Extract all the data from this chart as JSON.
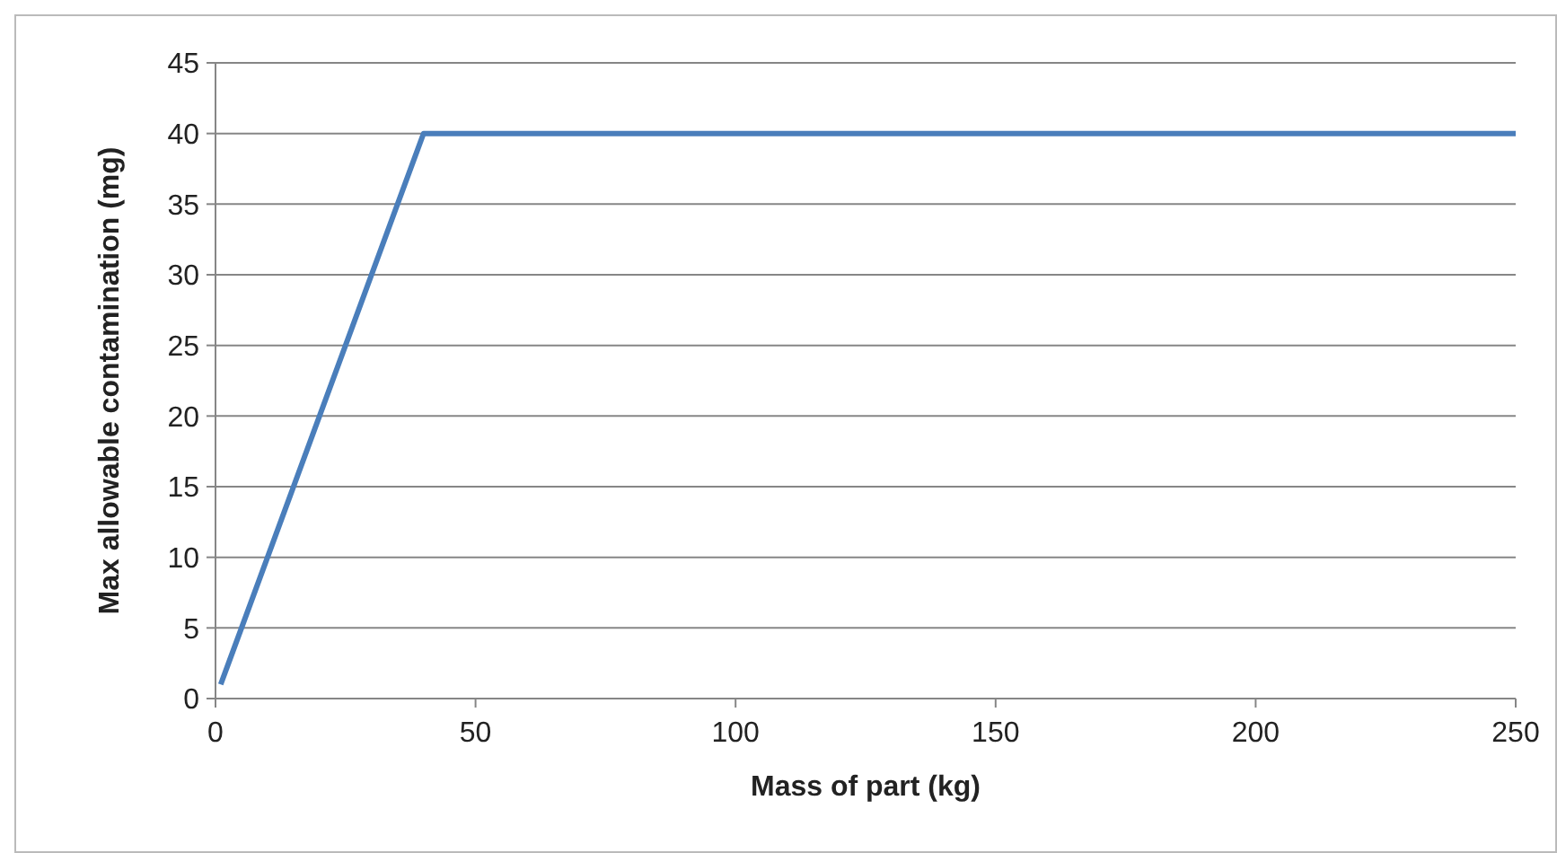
{
  "chart_data": {
    "type": "line",
    "xlabel": "Mass of part (kg)",
    "ylabel": "Max allowable contamination (mg)",
    "x": [
      1,
      40,
      250
    ],
    "series": [
      {
        "color": "#4a7ebb",
        "values": [
          1,
          40,
          40
        ]
      }
    ],
    "xlim": [
      0,
      250
    ],
    "xticks": [
      0,
      50,
      100,
      150,
      200,
      250
    ],
    "ylim": [
      0,
      45
    ],
    "yticks": [
      0,
      5,
      10,
      15,
      20,
      25,
      30,
      35,
      40,
      45
    ],
    "grid": "y",
    "marker": "none",
    "line_style": "solid"
  }
}
